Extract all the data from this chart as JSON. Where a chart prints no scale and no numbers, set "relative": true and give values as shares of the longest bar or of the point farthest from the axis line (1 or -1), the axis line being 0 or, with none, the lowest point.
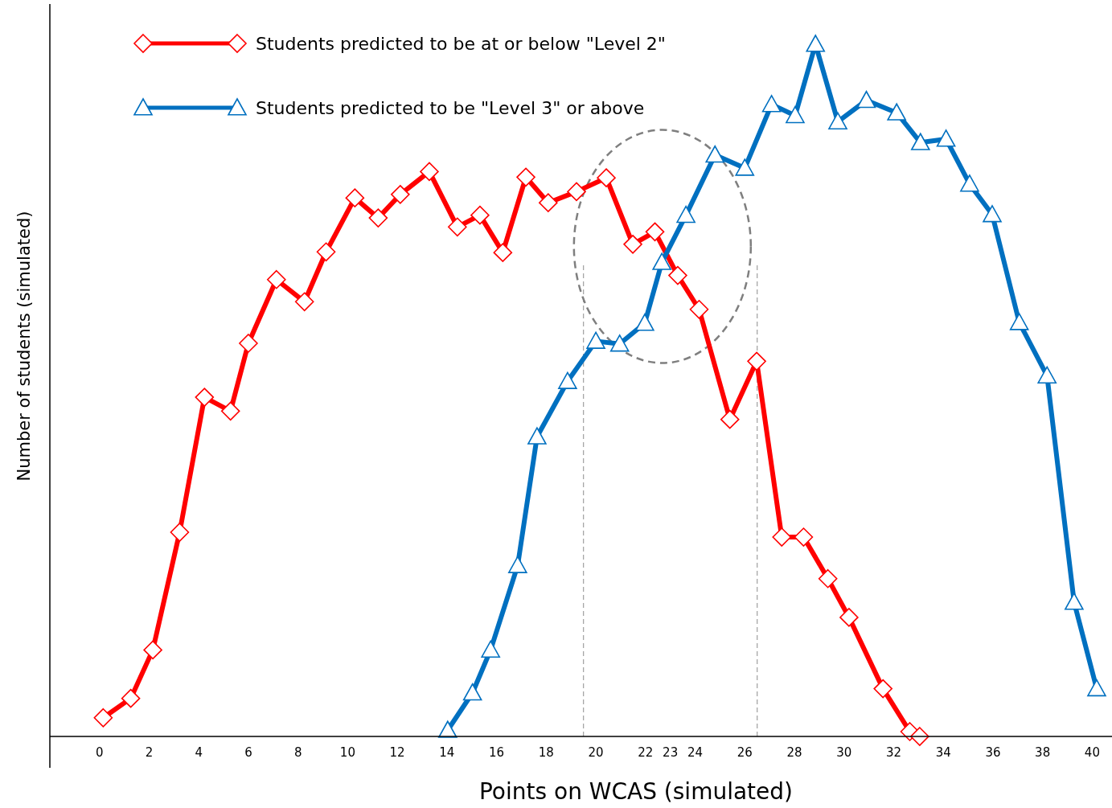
{
  "chart_data": {
    "type": "line",
    "xlabel": "Points on WCAS (simulated)",
    "ylabel": "Number of students (simulated)",
    "relative": true,
    "xlim": [
      -2,
      40.7
    ],
    "xticks": [
      0,
      2,
      4,
      6,
      8,
      10,
      12,
      14,
      16,
      18,
      20,
      22,
      23,
      24,
      26,
      28,
      30,
      32,
      34,
      36,
      38,
      40
    ],
    "tick_labels": "x",
    "legend": "top left",
    "line_style": "solid",
    "ref_lines": [
      {
        "axis": "x",
        "value": 19.5,
        "color": "#a6a6a6",
        "line_style": "dashed"
      },
      {
        "axis": "x",
        "value": 26.5,
        "color": "#a6a6a6",
        "line_style": "dashed"
      }
    ],
    "series": [
      {
        "name": "Students predicted to be at or below \"Level 2\"",
        "color": "#ff0000",
        "marker": "diamond",
        "x": [
          0.15,
          1.26,
          2.15,
          3.23,
          4.23,
          5.28,
          6.0,
          7.13,
          8.26,
          9.13,
          10.29,
          11.23,
          12.12,
          13.29,
          14.42,
          15.33,
          16.25,
          17.18,
          18.08,
          19.22,
          20.42,
          21.49,
          22.38,
          23.3,
          24.16,
          25.4,
          26.48,
          27.49,
          28.37,
          29.35,
          30.2,
          31.57,
          32.65,
          33.05
        ],
        "values": [
          0.027,
          0.055,
          0.125,
          0.295,
          0.49,
          0.47,
          0.568,
          0.66,
          0.628,
          0.7,
          0.778,
          0.749,
          0.783,
          0.816,
          0.736,
          0.753,
          0.699,
          0.808,
          0.771,
          0.787,
          0.807,
          0.711,
          0.729,
          0.666,
          0.617,
          0.458,
          0.542,
          0.288,
          0.288,
          0.228,
          0.172,
          0.069,
          0.007,
          0
        ]
      },
      {
        "name": "Students predicted to be \"Level 3\" or above",
        "color": "#0070c0",
        "marker": "triangle",
        "x": [
          14.03,
          15.03,
          15.76,
          16.85,
          17.63,
          18.86,
          20.0,
          20.96,
          21.97,
          22.66,
          23.63,
          24.8,
          26.0,
          27.08,
          28.03,
          28.85,
          29.75,
          30.9,
          32.12,
          33.08,
          34.11,
          35.06,
          35.97,
          37.06,
          38.18,
          39.27,
          40.18
        ],
        "values": [
          0.009,
          0.063,
          0.125,
          0.247,
          0.433,
          0.513,
          0.571,
          0.567,
          0.597,
          0.685,
          0.753,
          0.84,
          0.821,
          0.913,
          0.897,
          1,
          0.888,
          0.919,
          0.901,
          0.858,
          0.863,
          0.798,
          0.754,
          0.598,
          0.521,
          0.194,
          0.069
        ]
      }
    ]
  }
}
